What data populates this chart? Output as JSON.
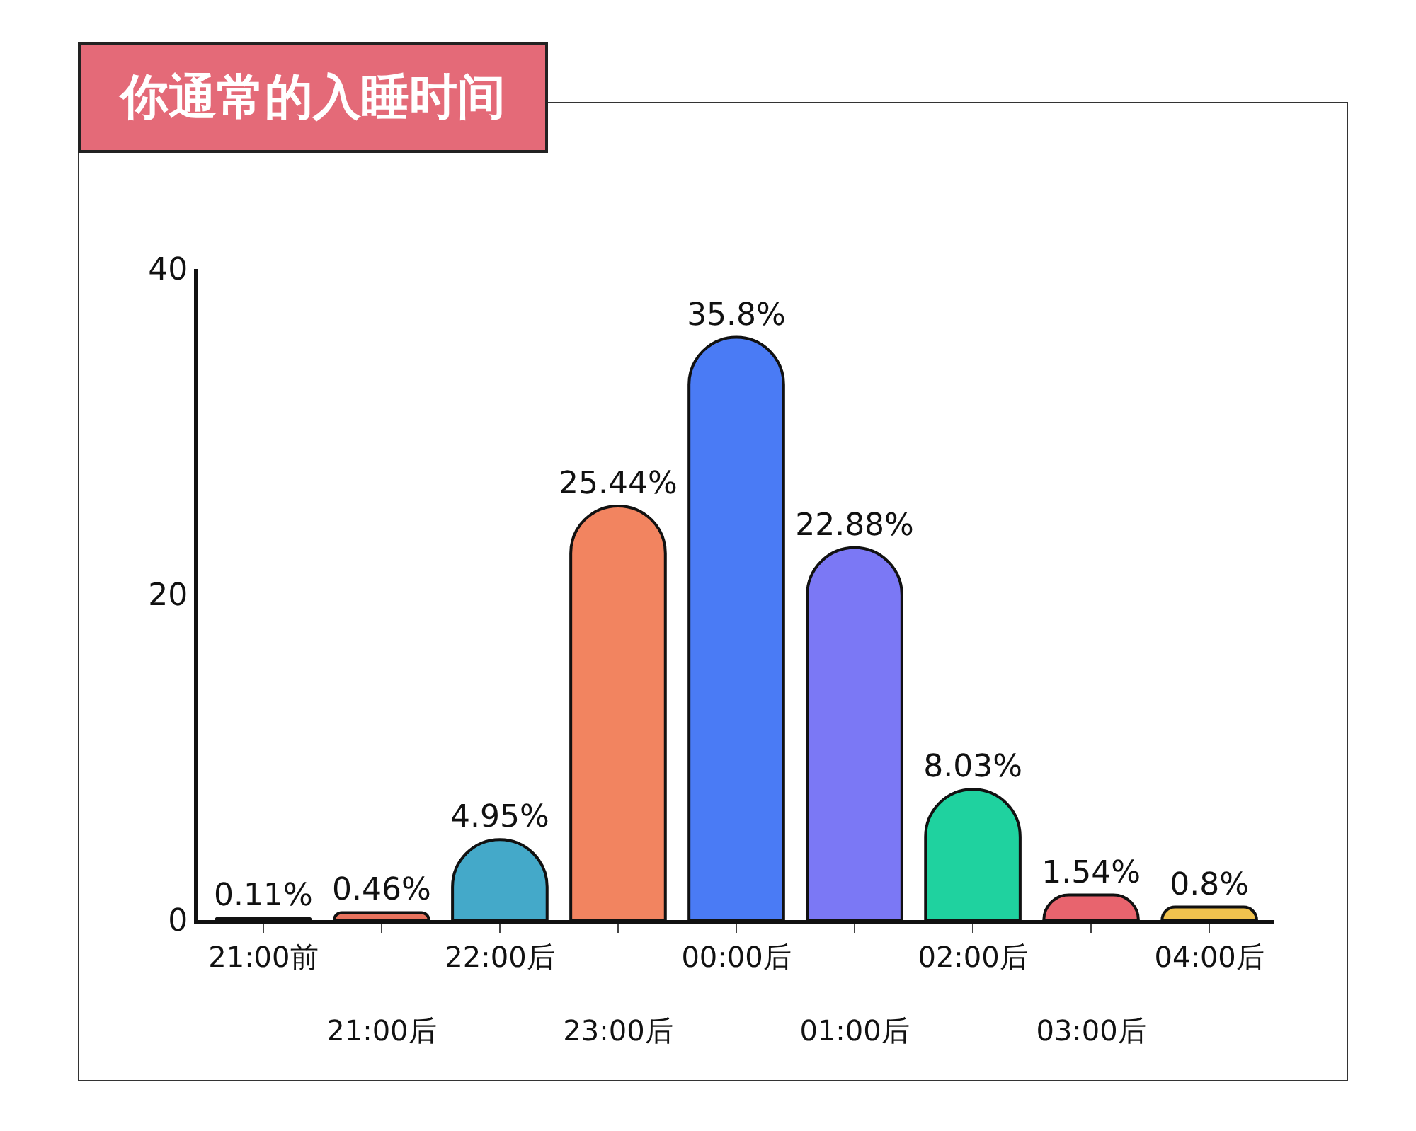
{
  "chart_data": {
    "type": "bar",
    "title": "你通常的入睡时间",
    "categories": [
      "21:00前",
      "21:00后",
      "22:00后",
      "23:00后",
      "00:00后",
      "01:00后",
      "02:00后",
      "03:00后",
      "04:00后"
    ],
    "values": [
      0.11,
      0.46,
      4.95,
      25.44,
      35.8,
      22.88,
      8.03,
      1.54,
      0.8
    ],
    "value_labels": [
      "0.11%",
      "0.46%",
      "4.95%",
      "25.44%",
      "35.8%",
      "22.88%",
      "8.03%",
      "1.54%",
      "0.8%"
    ],
    "colors": [
      "#2b2b2b",
      "#e8735e",
      "#44a9c9",
      "#f28460",
      "#4a7bf5",
      "#7b78f5",
      "#1fd29f",
      "#e8646e",
      "#f0c24e"
    ],
    "ylim": [
      0,
      40
    ],
    "yticks": [
      0,
      20,
      40
    ],
    "grid": false,
    "legend": false
  }
}
